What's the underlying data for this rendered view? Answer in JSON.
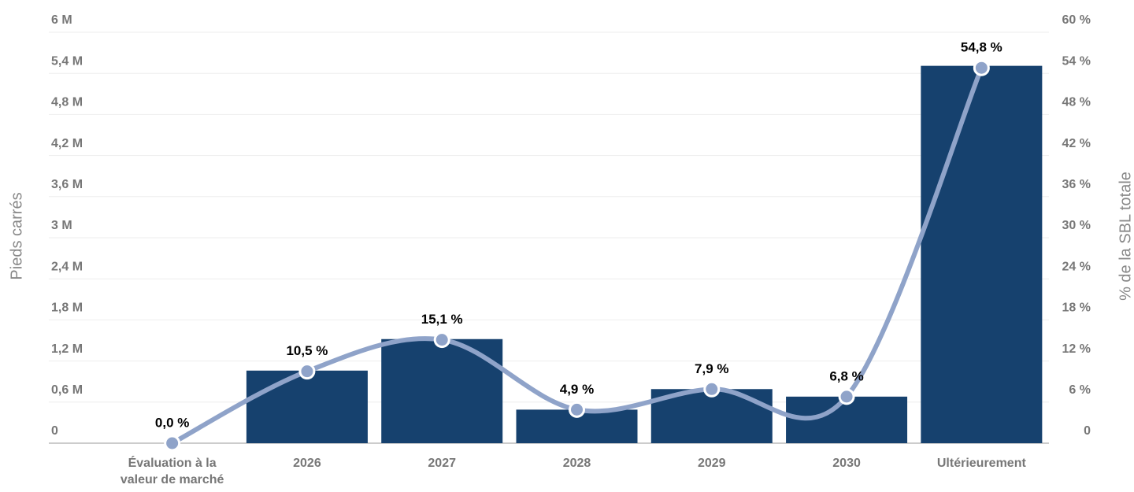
{
  "chart_data": {
    "type": "bar+line",
    "ylabel": "Pieds carrés",
    "y2label": "% de la SBL totale",
    "categories": [
      "Évaluation à la valeur de marché",
      "2026",
      "2027",
      "2028",
      "2029",
      "2030",
      "Ultérieurement"
    ],
    "series": [
      {
        "type": "bar",
        "color": "#16416e",
        "values": [
          0,
          1060000,
          1520000,
          490000,
          790000,
          680000,
          5510000
        ]
      },
      {
        "type": "line",
        "axis": "y2",
        "color": "#8fa3c9",
        "values": [
          0,
          10.5,
          15.1,
          4.9,
          7.9,
          6.8,
          54.8
        ],
        "value_labels": [
          "0,0 %",
          "10,5 %",
          "15,1 %",
          "4,9 %",
          "7,9 %",
          "6,8 %",
          "54,8 %"
        ]
      }
    ],
    "ylim": [
      0,
      6000000
    ],
    "yticks": [
      0,
      {
        "value": 600000,
        "label": "0,6 M"
      },
      {
        "value": 1200000,
        "label": "1,2 M"
      },
      {
        "value": 1800000,
        "label": "1,8 M"
      },
      {
        "value": 2400000,
        "label": "2,4 M"
      },
      {
        "value": 3000000,
        "label": "3 M"
      },
      {
        "value": 3600000,
        "label": "3,6 M"
      },
      {
        "value": 4200000,
        "label": "4,2 M"
      },
      {
        "value": 4800000,
        "label": "4,8 M"
      },
      {
        "value": 5400000,
        "label": "5,4 M"
      },
      {
        "value": 6000000,
        "label": "6 M"
      }
    ],
    "y2lim": [
      0,
      60
    ],
    "y2ticks": [
      0,
      {
        "value": 6,
        "label": "6 %"
      },
      {
        "value": 12,
        "label": "12 %"
      },
      {
        "value": 18,
        "label": "18 %"
      },
      {
        "value": 24,
        "label": "24 %"
      },
      {
        "value": 30,
        "label": "30 %"
      },
      {
        "value": 36,
        "label": "36 %"
      },
      {
        "value": 42,
        "label": "42 %"
      },
      {
        "value": 48,
        "label": "48 %"
      },
      {
        "value": 54,
        "label": "54 %"
      },
      {
        "value": 60,
        "label": "60 %"
      }
    ],
    "grid": true
  }
}
